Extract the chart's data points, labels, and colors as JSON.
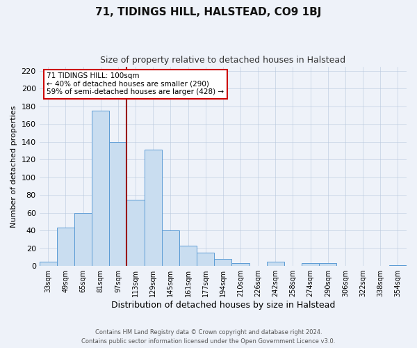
{
  "title": "71, TIDINGS HILL, HALSTEAD, CO9 1BJ",
  "subtitle": "Size of property relative to detached houses in Halstead",
  "xlabel": "Distribution of detached houses by size in Halstead",
  "ylabel": "Number of detached properties",
  "footer_line1": "Contains HM Land Registry data © Crown copyright and database right 2024.",
  "footer_line2": "Contains public sector information licensed under the Open Government Licence v3.0.",
  "bar_labels": [
    "33sqm",
    "49sqm",
    "65sqm",
    "81sqm",
    "97sqm",
    "113sqm",
    "129sqm",
    "145sqm",
    "161sqm",
    "177sqm",
    "194sqm",
    "210sqm",
    "226sqm",
    "242sqm",
    "258sqm",
    "274sqm",
    "290sqm",
    "306sqm",
    "322sqm",
    "338sqm",
    "354sqm"
  ],
  "bar_values": [
    5,
    43,
    60,
    175,
    140,
    75,
    131,
    40,
    23,
    15,
    8,
    3,
    0,
    5,
    0,
    3,
    3,
    0,
    0,
    0,
    1
  ],
  "bar_color": "#c9ddf0",
  "bar_edge_color": "#5b9bd5",
  "ylim": [
    0,
    225
  ],
  "yticks": [
    0,
    20,
    40,
    60,
    80,
    100,
    120,
    140,
    160,
    180,
    200,
    220
  ],
  "vline_color": "#990000",
  "vline_x": 4.5,
  "annotation_text": "71 TIDINGS HILL: 100sqm\n← 40% of detached houses are smaller (290)\n59% of semi-detached houses are larger (428) →",
  "annotation_box_fc": "#ffffff",
  "annotation_box_ec": "#cc0000",
  "background_color": "#eef2f9"
}
